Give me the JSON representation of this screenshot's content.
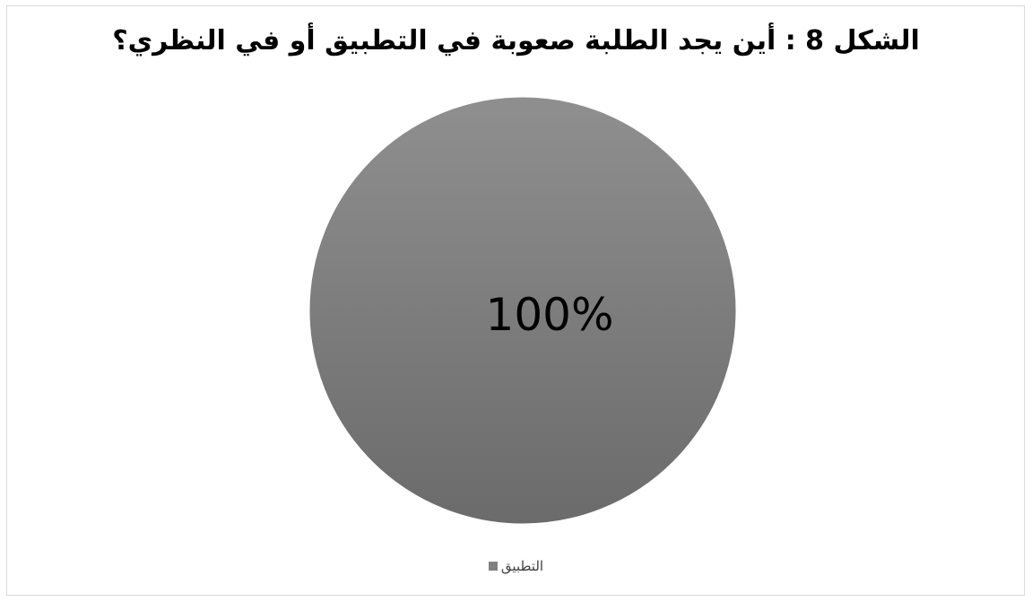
{
  "chart_data": {
    "type": "pie",
    "title": "الشكل 8 : أين يجد الطلبة صعوبة في التطبيق أو في النظري؟",
    "categories": [
      "التطبيق"
    ],
    "values": [
      100
    ],
    "data_labels": [
      "100%"
    ],
    "legend": "bottom",
    "colors": {
      "slice_top": "#8f8f8f",
      "slice_bottom": "#6b6b6b",
      "legend_swatch": "#808080"
    }
  }
}
